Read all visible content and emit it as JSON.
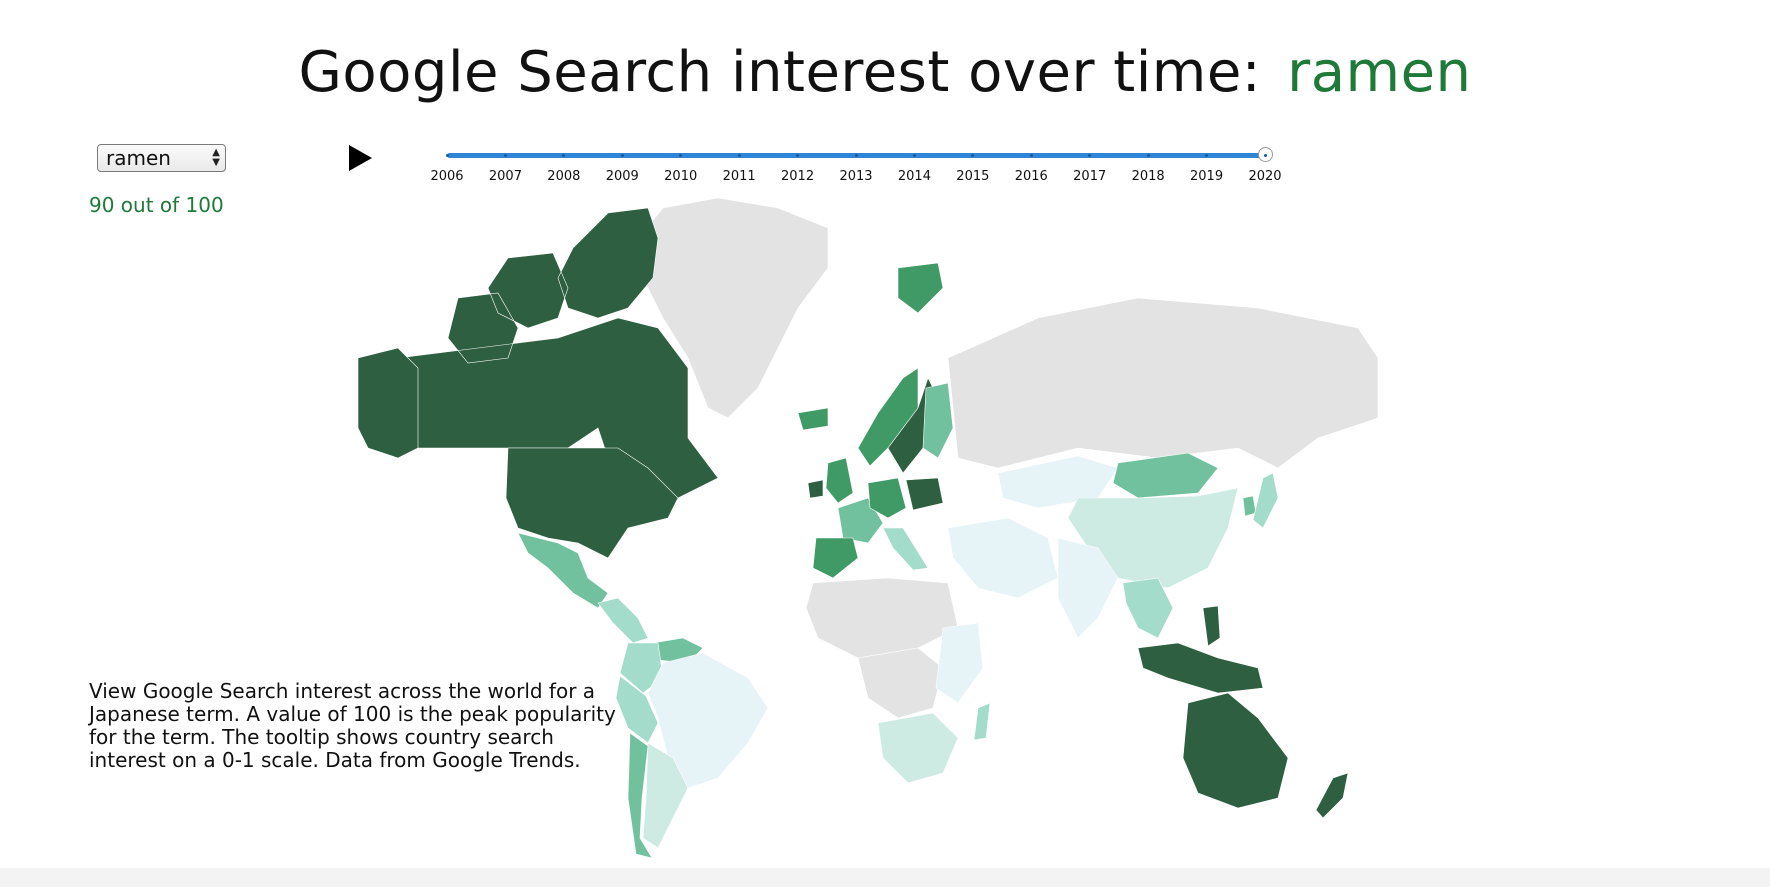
{
  "header": {
    "title_prefix": "Google Search interest over time:",
    "term": "ramen"
  },
  "controls": {
    "selected_term": "ramen",
    "score_text": "90 out of 100",
    "play_icon": "play-icon",
    "years": [
      "2006",
      "2007",
      "2008",
      "2009",
      "2010",
      "2011",
      "2012",
      "2013",
      "2014",
      "2015",
      "2016",
      "2017",
      "2018",
      "2019",
      "2020"
    ],
    "selected_year": "2020"
  },
  "description": "View Google Search interest across the world for a Japanese term. A value of 100 is the peak popularity for the term. The tooltip shows country search interest on a 0-1 scale. Data from Google Trends.",
  "colors": {
    "accent": "#1f7a3a",
    "no_data": "#e3e3e3",
    "slider": "#2f86d6",
    "scale": [
      "#e6f3f7",
      "#cdeae3",
      "#a4dccb",
      "#72c19e",
      "#3f9a66",
      "#2e5f40"
    ]
  },
  "map_data": {
    "type": "choropleth",
    "scale": "0-1",
    "regions": [
      {
        "name": "Canada",
        "level": 5
      },
      {
        "name": "United States",
        "level": 5
      },
      {
        "name": "Alaska",
        "level": 5
      },
      {
        "name": "Mexico",
        "level": 3
      },
      {
        "name": "Central America",
        "level": 2
      },
      {
        "name": "Venezuela",
        "level": 3
      },
      {
        "name": "Brazil",
        "level": 0
      },
      {
        "name": "Colombia",
        "level": 2
      },
      {
        "name": "Peru",
        "level": 2
      },
      {
        "name": "Chile",
        "level": 3
      },
      {
        "name": "Argentina",
        "level": 1
      },
      {
        "name": "Greenland",
        "level": -1
      },
      {
        "name": "Iceland",
        "level": 4
      },
      {
        "name": "Norway",
        "level": 4
      },
      {
        "name": "Sweden",
        "level": 5
      },
      {
        "name": "Finland",
        "level": 3
      },
      {
        "name": "Svalbard",
        "level": 4
      },
      {
        "name": "United Kingdom",
        "level": 4
      },
      {
        "name": "Ireland",
        "level": 5
      },
      {
        "name": "France",
        "level": 3
      },
      {
        "name": "Spain",
        "level": 4
      },
      {
        "name": "Germany",
        "level": 4
      },
      {
        "name": "Poland",
        "level": 5
      },
      {
        "name": "Italy",
        "level": 2
      },
      {
        "name": "Russia",
        "level": -1
      },
      {
        "name": "Kazakhstan",
        "level": 0
      },
      {
        "name": "Mongolia",
        "level": 3
      },
      {
        "name": "China",
        "level": 1
      },
      {
        "name": "Japan",
        "level": 2
      },
      {
        "name": "South Korea",
        "level": 3
      },
      {
        "name": "India",
        "level": 0
      },
      {
        "name": "Middle East",
        "level": 0
      },
      {
        "name": "Southeast Asia",
        "level": 2
      },
      {
        "name": "Indonesia",
        "level": 5
      },
      {
        "name": "Philippines",
        "level": 5
      },
      {
        "name": "Australia",
        "level": 5
      },
      {
        "name": "New Zealand",
        "level": 5
      },
      {
        "name": "North Africa",
        "level": -1
      },
      {
        "name": "Central Africa",
        "level": -1
      },
      {
        "name": "East Africa",
        "level": 0
      },
      {
        "name": "Southern Africa",
        "level": 1
      },
      {
        "name": "Madagascar",
        "level": 2
      }
    ]
  }
}
